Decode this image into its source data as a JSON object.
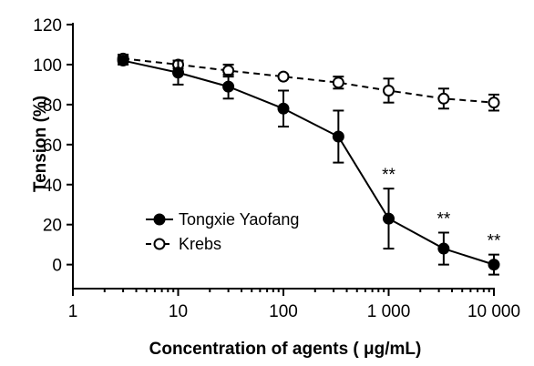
{
  "chart_data": {
    "type": "line",
    "title": "",
    "xlabel": "Concentration of agents ( μg/mL)",
    "ylabel": "Tension (%)",
    "xscale": "log",
    "xlim": [
      1,
      10000
    ],
    "ylim": [
      -12,
      120
    ],
    "x_ticks": [
      1,
      10,
      100,
      1000,
      10000
    ],
    "x_tick_labels": [
      "1",
      "10",
      "100",
      "1 000",
      "10 000"
    ],
    "y_ticks": [
      0,
      20,
      40,
      60,
      80,
      100,
      120
    ],
    "y_tick_labels": [
      "0",
      "20",
      "40",
      "60",
      "80",
      "100",
      "120"
    ],
    "legend_position": "lower-left",
    "series": [
      {
        "name": "Tongxie Yaofang",
        "marker": "filled-circle",
        "line": "solid",
        "x": [
          3,
          10,
          30,
          100,
          333,
          1000,
          3333,
          10000
        ],
        "y": [
          102,
          96,
          89,
          78,
          64,
          23,
          8,
          0
        ],
        "err": [
          2,
          6,
          6,
          9,
          13,
          15,
          8,
          5
        ],
        "significance": [
          "",
          "",
          "",
          "",
          "",
          "**",
          "**",
          "**"
        ]
      },
      {
        "name": "Krebs",
        "marker": "open-circle",
        "line": "dashed",
        "x": [
          3,
          10,
          30,
          100,
          333,
          1000,
          3333,
          10000
        ],
        "y": [
          103,
          100,
          97,
          94,
          91,
          87,
          83,
          81
        ],
        "err": [
          2,
          2,
          3,
          1,
          3,
          6,
          5,
          4
        ]
      }
    ]
  }
}
